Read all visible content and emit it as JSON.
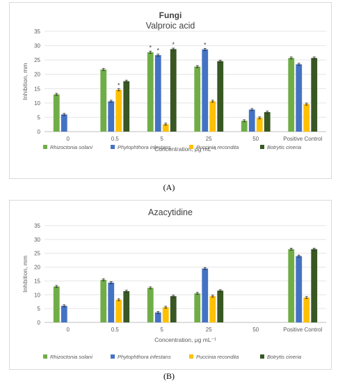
{
  "legend_labels": [
    "Rhizoctonia solani",
    "Phytophthora infestans",
    "Puccinia recondita",
    "Botrytis cineria"
  ],
  "colors": [
    "#70ad47",
    "#4472c4",
    "#ffc000",
    "#385723"
  ],
  "chart_data": [
    {
      "type": "bar",
      "title": "Fungi",
      "subtitle": "Valproic acid",
      "xlabel": "Concentration, μg mL⁻¹",
      "ylabel": "Inhibition, mm",
      "ylim": [
        0,
        35
      ],
      "yticks": [
        "0",
        "5",
        "10",
        "15",
        "20",
        "25",
        "30",
        "35"
      ],
      "grid": true,
      "legend_position": "bottom",
      "categories": [
        "0",
        "0.5",
        "5",
        "25",
        "50",
        "Positive Control"
      ],
      "series": [
        {
          "name": "Rhizoctonia solani",
          "values": [
            13,
            21.7,
            27.7,
            22.7,
            3.8,
            25.7
          ]
        },
        {
          "name": "Phytophthora infestans",
          "values": [
            6,
            10.6,
            26.7,
            28.7,
            7.7,
            23.5
          ]
        },
        {
          "name": "Puccinia recondita",
          "values": [
            null,
            14.6,
            2.6,
            10.6,
            4.8,
            9.6
          ]
        },
        {
          "name": "Botrytis cineria",
          "values": [
            null,
            17.6,
            28.8,
            24.6,
            6.8,
            25.7
          ]
        }
      ],
      "significance_marks": [
        {
          "category": "0.5",
          "series": "Puccinia recondita",
          "symbol": "*"
        },
        {
          "category": "5",
          "series": "Rhizoctonia solani",
          "symbol": "*"
        },
        {
          "category": "5",
          "series": "Phytophthora infestans",
          "symbol": "*"
        },
        {
          "category": "5",
          "series": "Botrytis cineria",
          "symbol": "*"
        },
        {
          "category": "25",
          "series": "Phytophthora infestans",
          "symbol": "*"
        }
      ],
      "caption": "(A)"
    },
    {
      "type": "bar",
      "title": "",
      "subtitle": "Azacytidine",
      "xlabel": "Concentration, μg mL⁻¹",
      "ylabel": "Inhibition, mm",
      "ylim": [
        0,
        35
      ],
      "yticks": [
        "0",
        "5",
        "10",
        "15",
        "20",
        "25",
        "30",
        "35"
      ],
      "grid": true,
      "legend_position": "bottom",
      "categories": [
        "0",
        "0.5",
        "5",
        "25",
        "50",
        "Positive Control"
      ],
      "series": [
        {
          "name": "Rhizoctonia solani",
          "values": [
            13,
            15.4,
            12.5,
            10.5,
            null,
            26.5
          ]
        },
        {
          "name": "Phytophthora infestans",
          "values": [
            6,
            14.4,
            3.6,
            19.5,
            null,
            24
          ]
        },
        {
          "name": "Puccinia recondita",
          "values": [
            null,
            8.2,
            5.5,
            9.5,
            null,
            9
          ]
        },
        {
          "name": "Botrytis cineria",
          "values": [
            null,
            11.3,
            9.5,
            11.5,
            null,
            26.5
          ]
        }
      ],
      "significance_marks": [],
      "caption": "(B)"
    }
  ]
}
